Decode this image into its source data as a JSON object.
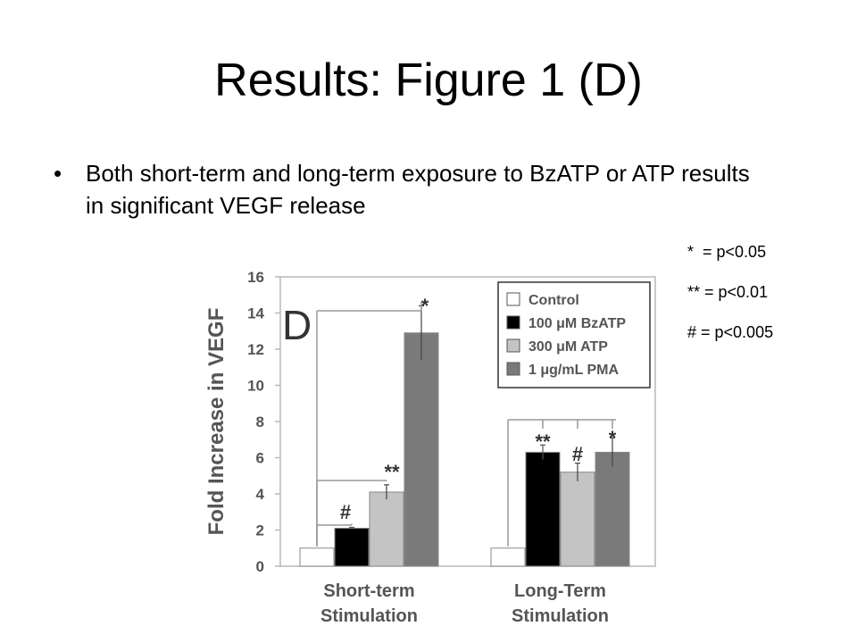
{
  "slide": {
    "title": "Results: Figure 1 (D)",
    "bullet": "•",
    "bullet_text": "Both short-term and long-term exposure to BzATP or ATP results in significant VEGF release",
    "significance_key": [
      "*  = p<0.05",
      "** = p<0.01",
      "# = p<0.005"
    ]
  },
  "chart_data": {
    "type": "bar",
    "panel_label": "D",
    "ylabel": "Fold Increase in VEGF",
    "ylim": [
      0,
      16
    ],
    "yticks": [
      0,
      2,
      4,
      6,
      8,
      10,
      12,
      14,
      16
    ],
    "categories": [
      "Short-term\nStimulation",
      "Long-Term\nStimulation"
    ],
    "series": [
      {
        "name": "Control",
        "values": [
          1,
          1
        ],
        "errors": [
          0,
          0
        ],
        "color": "#ffffff"
      },
      {
        "name": "100 μM BzATP",
        "values": [
          2.1,
          6.3
        ],
        "errors": [
          0.05,
          0.4
        ],
        "color": "#000000"
      },
      {
        "name": "300 μM ATP",
        "values": [
          4.1,
          5.2
        ],
        "errors": [
          0.4,
          0.5
        ],
        "color": "#c4c4c4"
      },
      {
        "name": "1 μg/mL PMA",
        "values": [
          12.9,
          6.3
        ],
        "errors": [
          1.5,
          0.8
        ],
        "color": "#7a7a7a"
      }
    ],
    "annotations": [
      {
        "text": "#",
        "category": 0,
        "series": 1
      },
      {
        "text": "**",
        "category": 0,
        "series": 2
      },
      {
        "text": "*",
        "category": 0,
        "series": 3
      },
      {
        "text": "**",
        "category": 1,
        "series": 1
      },
      {
        "text": "#",
        "category": 1,
        "series": 2
      },
      {
        "text": "*",
        "category": 1,
        "series": 3
      }
    ],
    "legend_position": "top-right",
    "grid": false
  }
}
